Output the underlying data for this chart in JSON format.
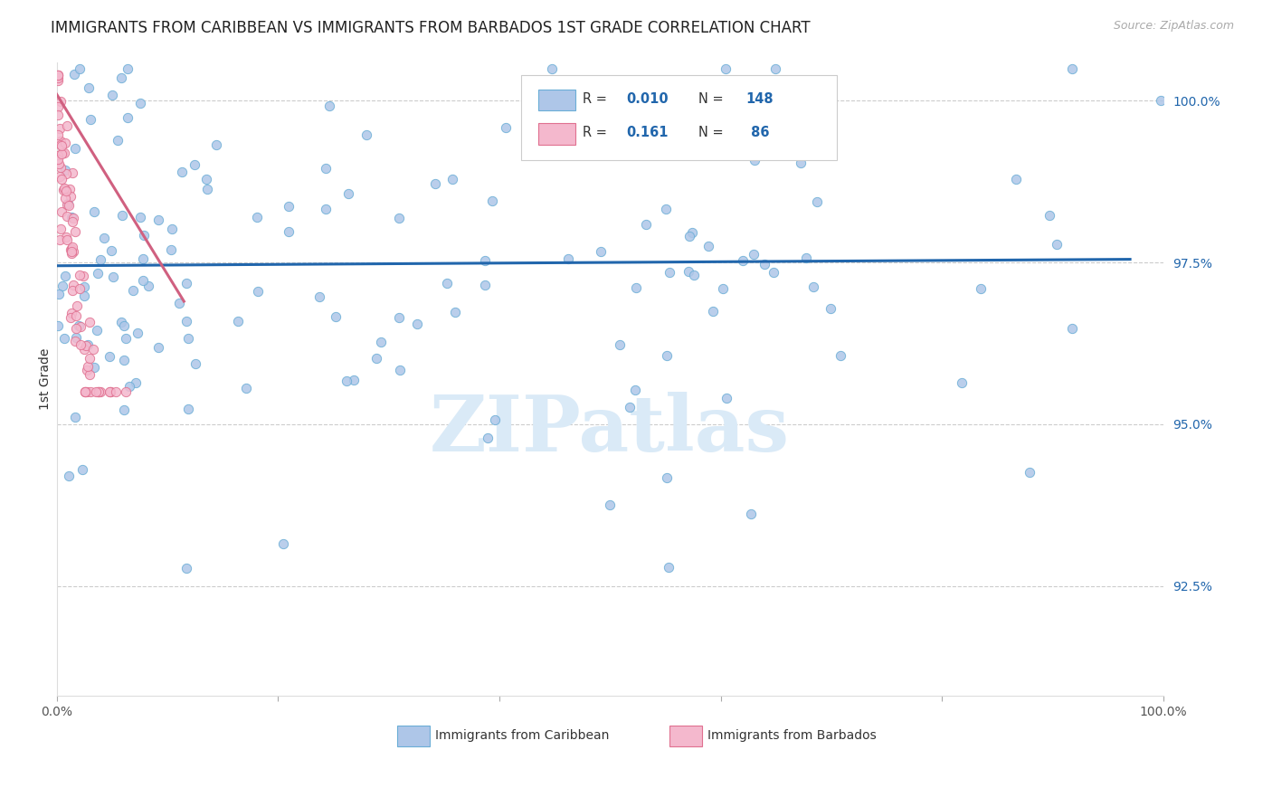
{
  "title": "IMMIGRANTS FROM CARIBBEAN VS IMMIGRANTS FROM BARBADOS 1ST GRADE CORRELATION CHART",
  "source": "Source: ZipAtlas.com",
  "ylabel": "1st Grade",
  "x_min": 0.0,
  "x_max": 1.0,
  "y_min": 0.908,
  "y_max": 1.006,
  "y_tick_labels_right": [
    "100.0%",
    "97.5%",
    "95.0%",
    "92.5%"
  ],
  "y_tick_values_right": [
    1.0,
    0.975,
    0.95,
    0.925
  ],
  "color_blue_face": "#aec6e8",
  "color_blue_edge": "#6baed6",
  "color_pink_face": "#f4b8cd",
  "color_pink_edge": "#e07090",
  "color_blue_line": "#2166ac",
  "color_pink_line": "#d06080",
  "watermark": "ZIPatlas",
  "grid_color": "#cccccc",
  "title_fontsize": 12,
  "label_fontsize": 10,
  "tick_fontsize": 10,
  "blue_line_x": [
    0.0,
    0.97
  ],
  "blue_line_y": [
    0.9745,
    0.9755
  ],
  "pink_line_x": [
    0.0,
    0.115
  ],
  "pink_line_y": [
    1.001,
    0.969
  ]
}
